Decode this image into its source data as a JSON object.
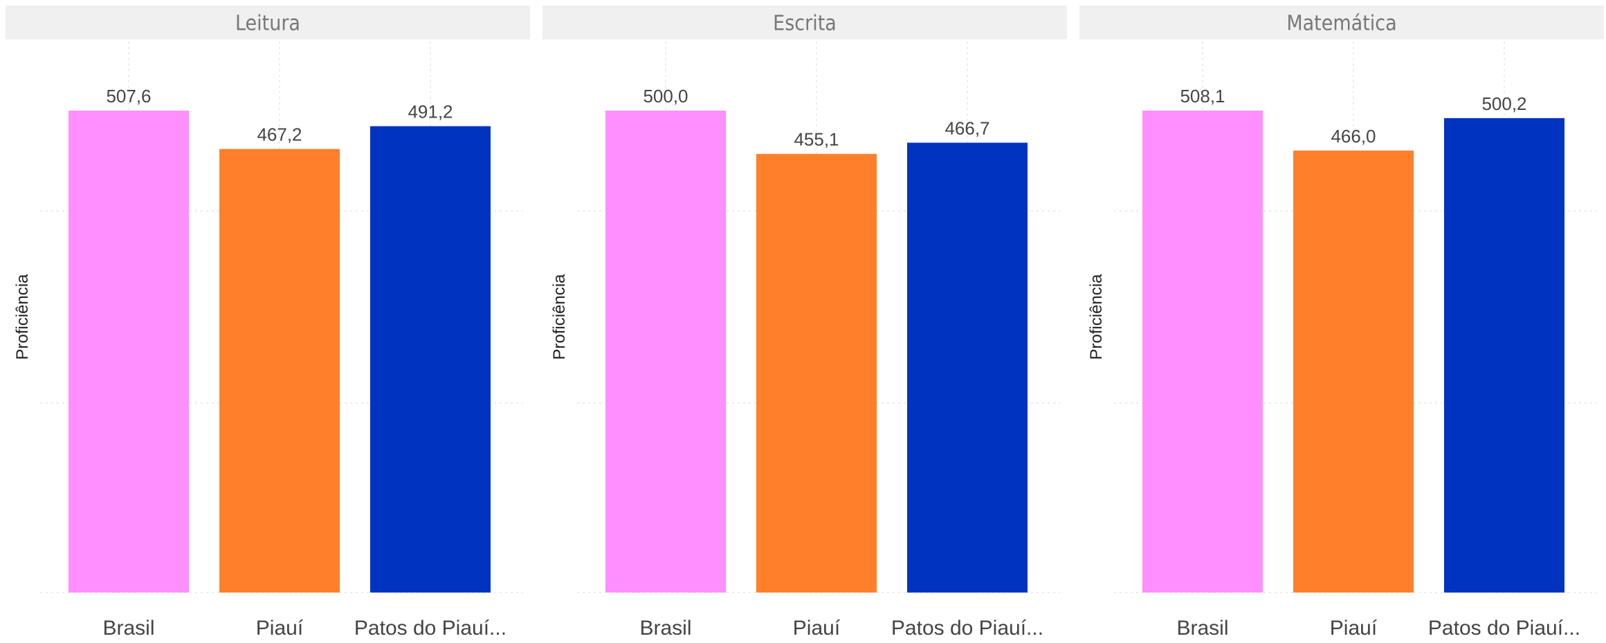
{
  "chart_data": [
    {
      "type": "bar",
      "title": "Leitura",
      "ylabel": "Proficiência",
      "categories": [
        "Brasil",
        "Piauí",
        "Patos do Piauí..."
      ],
      "values": [
        507.6,
        467.2,
        491.2
      ],
      "value_labels": [
        "507,6",
        "467,2",
        "491,2"
      ],
      "colors": [
        "#ff8fff",
        "#ff7f2a",
        "#0033c0"
      ],
      "ylim": [
        0,
        507.6
      ],
      "grid": true
    },
    {
      "type": "bar",
      "title": "Escrita",
      "ylabel": "Proficiência",
      "categories": [
        "Brasil",
        "Piauí",
        "Patos do Piauí..."
      ],
      "values": [
        500.0,
        455.1,
        466.7
      ],
      "value_labels": [
        "500,0",
        "455,1",
        "466,7"
      ],
      "colors": [
        "#ff8fff",
        "#ff7f2a",
        "#0033c0"
      ],
      "ylim": [
        0,
        500.0
      ],
      "grid": true
    },
    {
      "type": "bar",
      "title": "Matemática",
      "ylabel": "Proficiência",
      "categories": [
        "Brasil",
        "Piauí",
        "Patos do Piauí..."
      ],
      "values": [
        508.1,
        466.0,
        500.2
      ],
      "value_labels": [
        "508,1",
        "466,0",
        "500,2"
      ],
      "colors": [
        "#ff8fff",
        "#ff7f2a",
        "#0033c0"
      ],
      "ylim": [
        0,
        508.1
      ],
      "grid": true
    }
  ],
  "colors": {
    "strip_background": "#f0f0f0",
    "strip_text": "#777777",
    "label_text": "#444444",
    "grid": "#e6e6e6"
  }
}
